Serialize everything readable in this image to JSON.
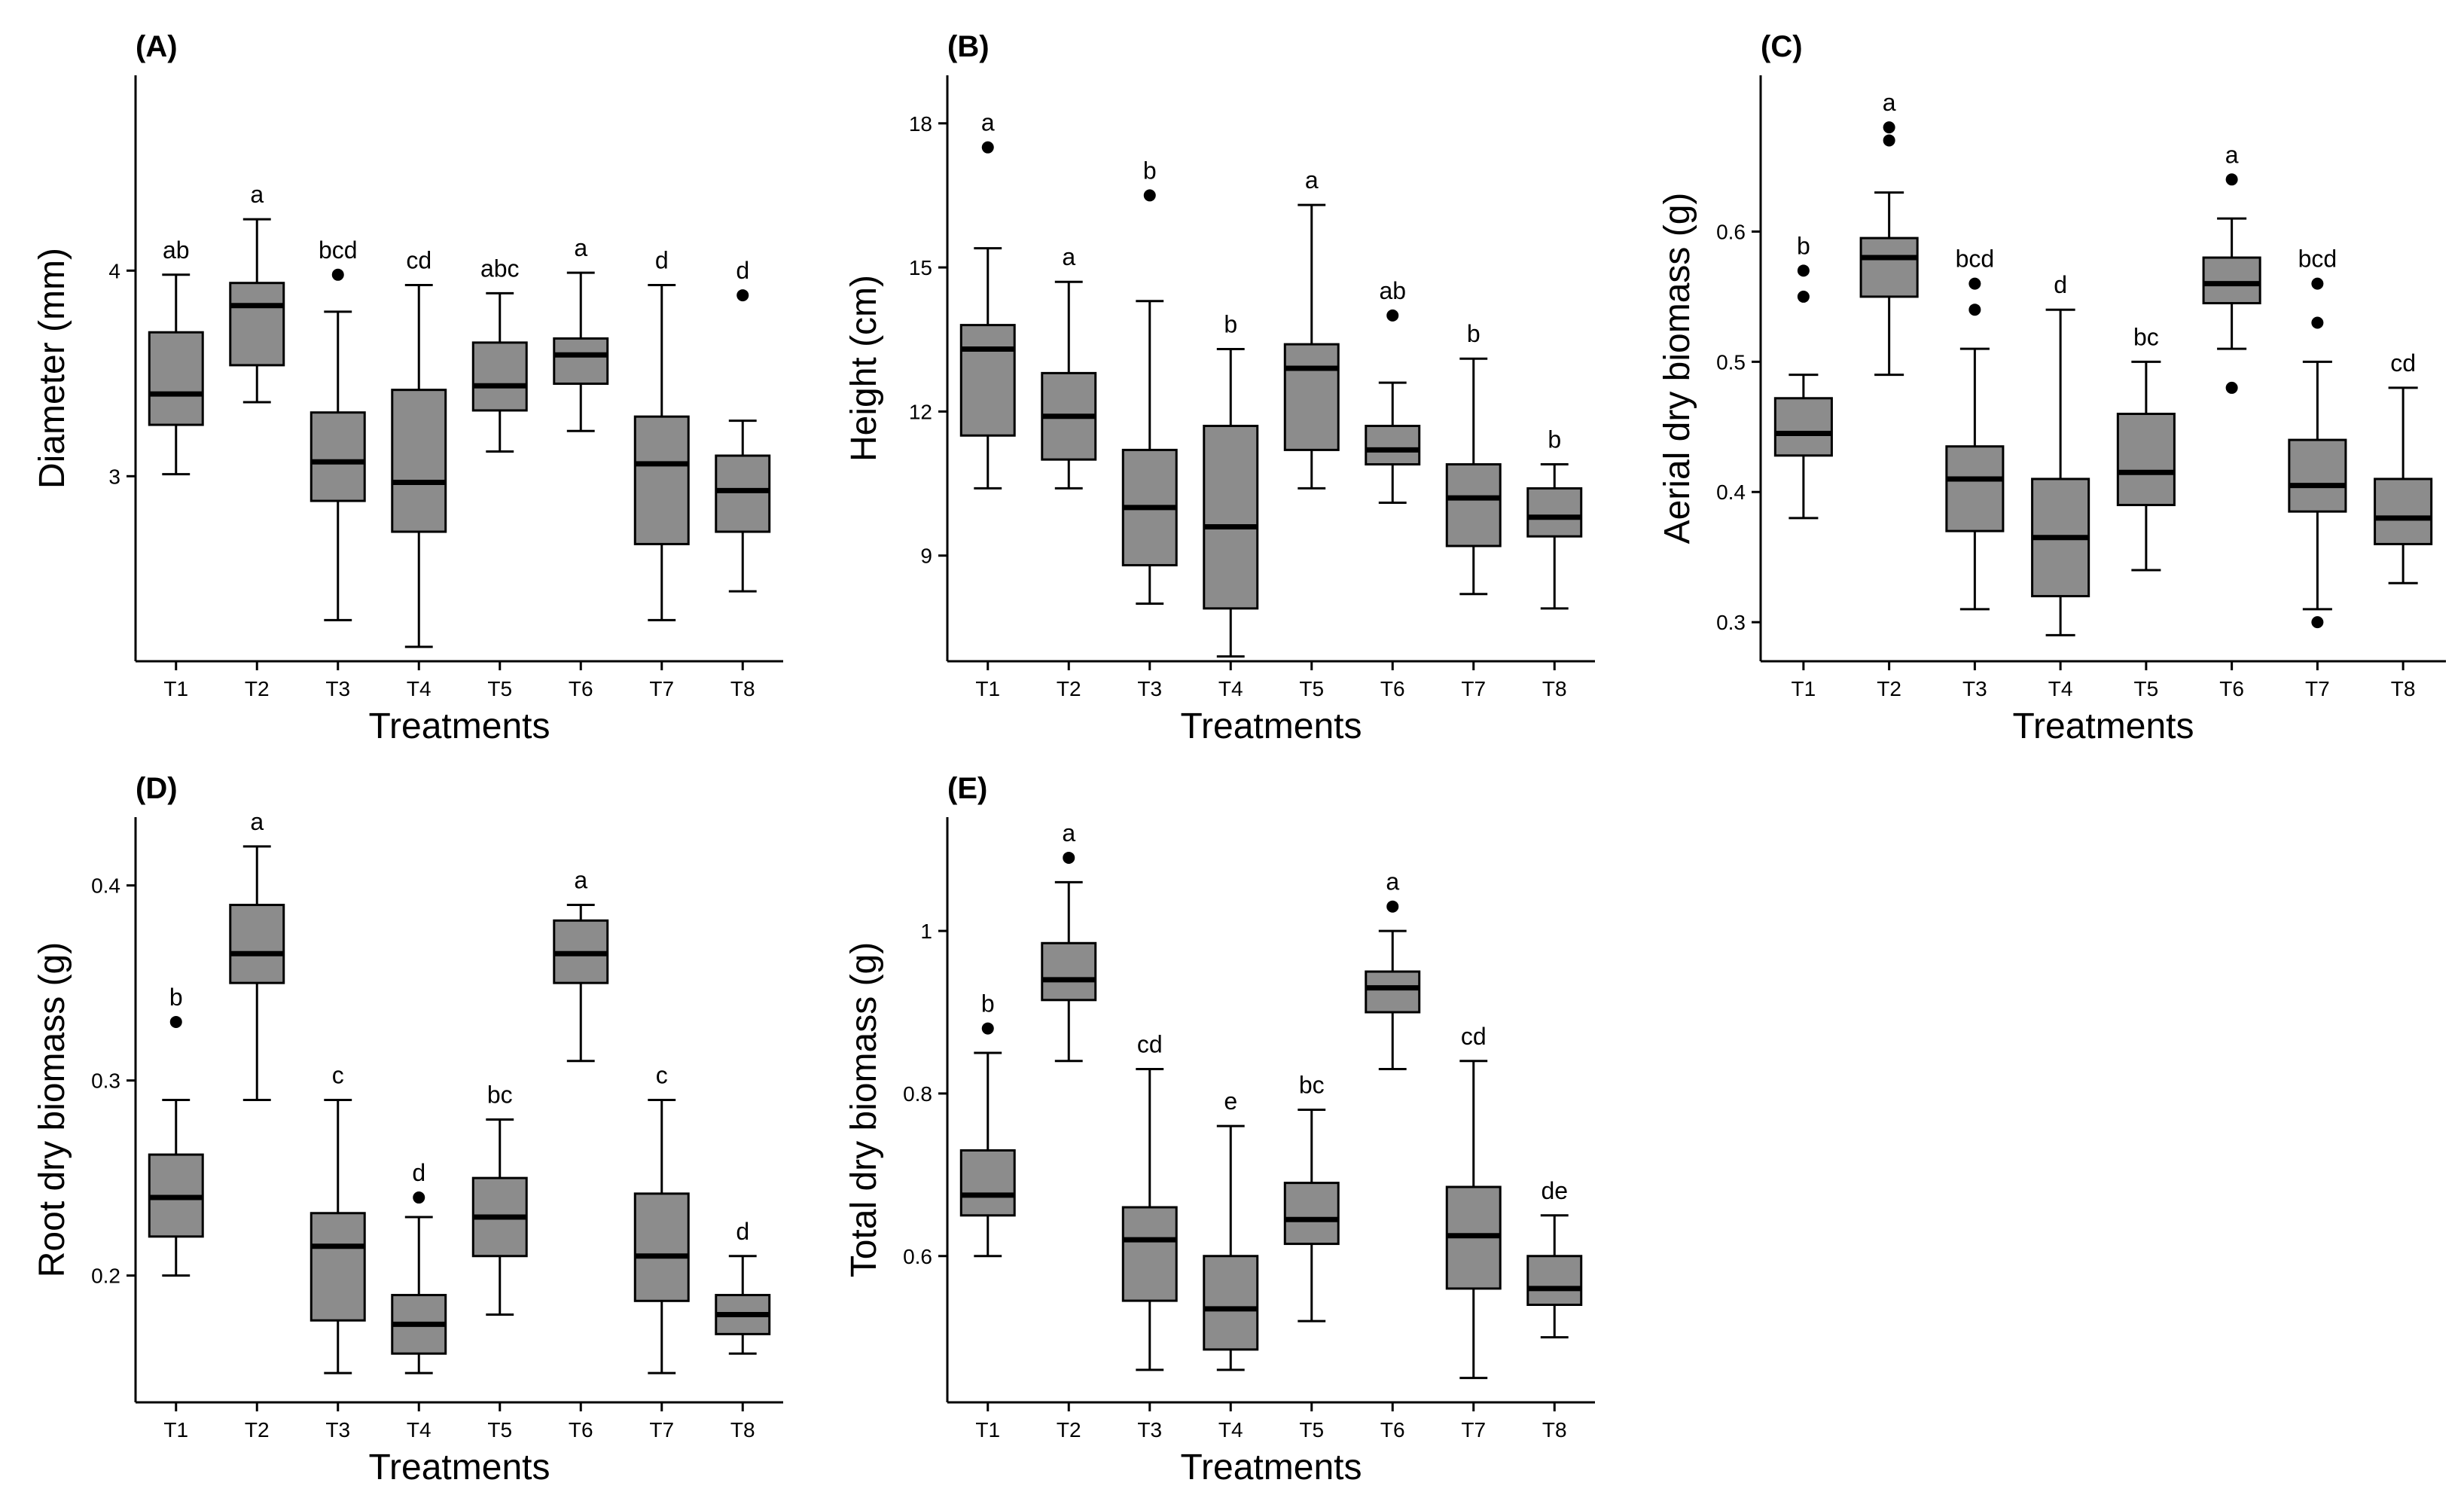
{
  "chart_data": [
    {
      "type": "box",
      "panel": "(A)",
      "xlabel": "Treatments",
      "ylabel": "Diameter (mm)",
      "ylim": [
        2.1,
        4.95
      ],
      "yticks": [
        3,
        4
      ],
      "categories": [
        "T1",
        "T2",
        "T3",
        "T4",
        "T5",
        "T6",
        "T7",
        "T8"
      ],
      "boxes": [
        {
          "min": 3.01,
          "q1": 3.25,
          "median": 3.4,
          "q3": 3.7,
          "max": 3.98,
          "outliers": [],
          "letter": "ab"
        },
        {
          "min": 3.36,
          "q1": 3.54,
          "median": 3.83,
          "q3": 3.94,
          "max": 4.25,
          "outliers": [],
          "letter": "a"
        },
        {
          "min": 2.3,
          "q1": 2.88,
          "median": 3.07,
          "q3": 3.31,
          "max": 3.8,
          "outliers": [
            3.98
          ],
          "letter": "bcd"
        },
        {
          "min": 2.17,
          "q1": 2.73,
          "median": 2.97,
          "q3": 3.42,
          "max": 3.93,
          "outliers": [],
          "letter": "cd"
        },
        {
          "min": 3.12,
          "q1": 3.32,
          "median": 3.44,
          "q3": 3.65,
          "max": 3.89,
          "outliers": [],
          "letter": "abc"
        },
        {
          "min": 3.22,
          "q1": 3.45,
          "median": 3.59,
          "q3": 3.67,
          "max": 3.99,
          "outliers": [],
          "letter": "a"
        },
        {
          "min": 2.3,
          "q1": 2.67,
          "median": 3.06,
          "q3": 3.29,
          "max": 3.93,
          "outliers": [],
          "letter": "d"
        },
        {
          "min": 2.44,
          "q1": 2.73,
          "median": 2.93,
          "q3": 3.1,
          "max": 3.27,
          "outliers": [
            3.88
          ],
          "letter": "d"
        }
      ]
    },
    {
      "type": "box",
      "panel": "(B)",
      "xlabel": "Treatments",
      "ylabel": "Height (cm)",
      "ylim": [
        6.8,
        19.0
      ],
      "yticks": [
        9,
        12,
        15,
        18
      ],
      "categories": [
        "T1",
        "T2",
        "T3",
        "T4",
        "T5",
        "T6",
        "T7",
        "T8"
      ],
      "boxes": [
        {
          "min": 10.4,
          "q1": 11.5,
          "median": 13.3,
          "q3": 13.8,
          "max": 15.4,
          "outliers": [
            17.5
          ],
          "letter": "a"
        },
        {
          "min": 10.4,
          "q1": 11.0,
          "median": 11.9,
          "q3": 12.8,
          "max": 14.7,
          "outliers": [],
          "letter": "a"
        },
        {
          "min": 8.0,
          "q1": 8.8,
          "median": 10.0,
          "q3": 11.2,
          "max": 14.3,
          "outliers": [
            16.5
          ],
          "letter": "b"
        },
        {
          "min": 6.9,
          "q1": 7.9,
          "median": 9.6,
          "q3": 11.7,
          "max": 13.3,
          "outliers": [],
          "letter": "b"
        },
        {
          "min": 10.4,
          "q1": 11.2,
          "median": 12.9,
          "q3": 13.4,
          "max": 16.3,
          "outliers": [],
          "letter": "a"
        },
        {
          "min": 10.1,
          "q1": 10.9,
          "median": 11.2,
          "q3": 11.7,
          "max": 12.6,
          "outliers": [
            14.0
          ],
          "letter": "ab"
        },
        {
          "min": 8.2,
          "q1": 9.2,
          "median": 10.2,
          "q3": 10.9,
          "max": 13.1,
          "outliers": [],
          "letter": "b"
        },
        {
          "min": 7.9,
          "q1": 9.4,
          "median": 9.8,
          "q3": 10.4,
          "max": 10.9,
          "outliers": [],
          "letter": "b"
        }
      ]
    },
    {
      "type": "box",
      "panel": "(C)",
      "xlabel": "Treatments",
      "ylabel": "Aerial dry biomass (g)",
      "ylim": [
        0.27,
        0.72
      ],
      "yticks": [
        0.3,
        0.4,
        0.5,
        0.6
      ],
      "categories": [
        "T1",
        "T2",
        "T3",
        "T4",
        "T5",
        "T6",
        "T7",
        "T8"
      ],
      "boxes": [
        {
          "min": 0.38,
          "q1": 0.428,
          "median": 0.445,
          "q3": 0.472,
          "max": 0.49,
          "outliers": [
            0.55,
            0.57
          ],
          "letter": "b"
        },
        {
          "min": 0.49,
          "q1": 0.55,
          "median": 0.58,
          "q3": 0.595,
          "max": 0.63,
          "outliers": [
            0.67,
            0.68
          ],
          "letter": "a"
        },
        {
          "min": 0.31,
          "q1": 0.37,
          "median": 0.41,
          "q3": 0.435,
          "max": 0.51,
          "outliers": [
            0.54,
            0.56
          ],
          "letter": "bcd"
        },
        {
          "min": 0.29,
          "q1": 0.32,
          "median": 0.365,
          "q3": 0.41,
          "max": 0.54,
          "outliers": [],
          "letter": "d"
        },
        {
          "min": 0.34,
          "q1": 0.39,
          "median": 0.415,
          "q3": 0.46,
          "max": 0.5,
          "outliers": [],
          "letter": "bc"
        },
        {
          "min": 0.51,
          "q1": 0.545,
          "median": 0.56,
          "q3": 0.58,
          "max": 0.61,
          "outliers": [
            0.48,
            0.64
          ],
          "letter": "a"
        },
        {
          "min": 0.31,
          "q1": 0.385,
          "median": 0.405,
          "q3": 0.44,
          "max": 0.5,
          "outliers": [
            0.3,
            0.53,
            0.56
          ],
          "letter": "bcd"
        },
        {
          "min": 0.33,
          "q1": 0.36,
          "median": 0.38,
          "q3": 0.41,
          "max": 0.48,
          "outliers": [],
          "letter": "cd"
        }
      ]
    },
    {
      "type": "box",
      "panel": "(D)",
      "xlabel": "Treatments",
      "ylabel": "Root dry biomass (g)",
      "ylim": [
        0.135,
        0.435
      ],
      "yticks": [
        0.2,
        0.3,
        0.4
      ],
      "categories": [
        "T1",
        "T2",
        "T3",
        "T4",
        "T5",
        "T6",
        "T7",
        "T8"
      ],
      "boxes": [
        {
          "min": 0.2,
          "q1": 0.22,
          "median": 0.24,
          "q3": 0.262,
          "max": 0.29,
          "outliers": [
            0.33
          ],
          "letter": "b"
        },
        {
          "min": 0.29,
          "q1": 0.35,
          "median": 0.365,
          "q3": 0.39,
          "max": 0.42,
          "outliers": [],
          "letter": "a"
        },
        {
          "min": 0.15,
          "q1": 0.177,
          "median": 0.215,
          "q3": 0.232,
          "max": 0.29,
          "outliers": [],
          "letter": "c"
        },
        {
          "min": 0.15,
          "q1": 0.16,
          "median": 0.175,
          "q3": 0.19,
          "max": 0.23,
          "outliers": [
            0.24
          ],
          "letter": "d"
        },
        {
          "min": 0.18,
          "q1": 0.21,
          "median": 0.23,
          "q3": 0.25,
          "max": 0.28,
          "outliers": [],
          "letter": "bc"
        },
        {
          "min": 0.31,
          "q1": 0.35,
          "median": 0.365,
          "q3": 0.382,
          "max": 0.39,
          "outliers": [],
          "letter": "a"
        },
        {
          "min": 0.15,
          "q1": 0.187,
          "median": 0.21,
          "q3": 0.242,
          "max": 0.29,
          "outliers": [],
          "letter": "c"
        },
        {
          "min": 0.16,
          "q1": 0.17,
          "median": 0.18,
          "q3": 0.19,
          "max": 0.21,
          "outliers": [],
          "letter": "d"
        }
      ]
    },
    {
      "type": "box",
      "panel": "(E)",
      "xlabel": "Treatments",
      "ylabel": "Total dry biomass (g)",
      "ylim": [
        0.42,
        1.14
      ],
      "yticks": [
        0.6,
        0.8,
        1.0
      ],
      "categories": [
        "T1",
        "T2",
        "T3",
        "T4",
        "T5",
        "T6",
        "T7",
        "T8"
      ],
      "boxes": [
        {
          "min": 0.6,
          "q1": 0.65,
          "median": 0.675,
          "q3": 0.73,
          "max": 0.85,
          "outliers": [
            0.88
          ],
          "letter": "b"
        },
        {
          "min": 0.84,
          "q1": 0.915,
          "median": 0.94,
          "q3": 0.985,
          "max": 1.06,
          "outliers": [
            1.09
          ],
          "letter": "a"
        },
        {
          "min": 0.46,
          "q1": 0.545,
          "median": 0.62,
          "q3": 0.66,
          "max": 0.83,
          "outliers": [],
          "letter": "cd"
        },
        {
          "min": 0.46,
          "q1": 0.485,
          "median": 0.535,
          "q3": 0.6,
          "max": 0.76,
          "outliers": [],
          "letter": "e"
        },
        {
          "min": 0.52,
          "q1": 0.615,
          "median": 0.645,
          "q3": 0.69,
          "max": 0.78,
          "outliers": [],
          "letter": "bc"
        },
        {
          "min": 0.83,
          "q1": 0.9,
          "median": 0.93,
          "q3": 0.95,
          "max": 1.0,
          "outliers": [
            1.03
          ],
          "letter": "a"
        },
        {
          "min": 0.45,
          "q1": 0.56,
          "median": 0.625,
          "q3": 0.685,
          "max": 0.84,
          "outliers": [],
          "letter": "cd"
        },
        {
          "min": 0.5,
          "q1": 0.54,
          "median": 0.56,
          "q3": 0.6,
          "max": 0.65,
          "outliers": [],
          "letter": "de"
        }
      ]
    }
  ]
}
